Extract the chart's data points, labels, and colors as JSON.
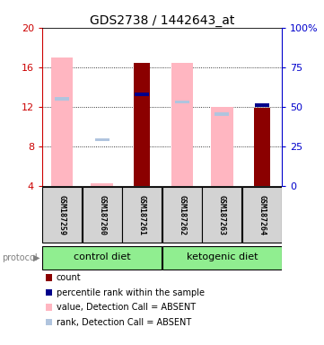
{
  "title": "GDS2738 / 1442643_at",
  "samples": [
    "GSM187259",
    "GSM187260",
    "GSM187261",
    "GSM187262",
    "GSM187263",
    "GSM187264"
  ],
  "group_labels": [
    "control diet",
    "ketogenic diet"
  ],
  "ylim_left": [
    4,
    20
  ],
  "ylim_right": [
    0,
    100
  ],
  "yticks_left": [
    4,
    8,
    12,
    16,
    20
  ],
  "yticks_right": [
    0,
    25,
    50,
    75,
    100
  ],
  "value_absent": [
    17.0,
    4.3,
    null,
    16.4,
    12.0,
    null
  ],
  "rank_absent": [
    12.8,
    8.7,
    null,
    12.5,
    11.3,
    null
  ],
  "count_present": [
    null,
    null,
    16.4,
    null,
    null,
    11.9
  ],
  "rank_present": [
    null,
    null,
    13.3,
    null,
    null,
    12.2
  ],
  "color_value_absent": "#ffb6c1",
  "color_rank_absent": "#b0c4de",
  "color_count": "#8b0000",
  "color_rank_present": "#00008b",
  "tick_color_left": "#cc0000",
  "tick_color_right": "#0000cc",
  "background_color": "#ffffff",
  "label_bg": "#d3d3d3",
  "protocol_bg": "#90EE90"
}
